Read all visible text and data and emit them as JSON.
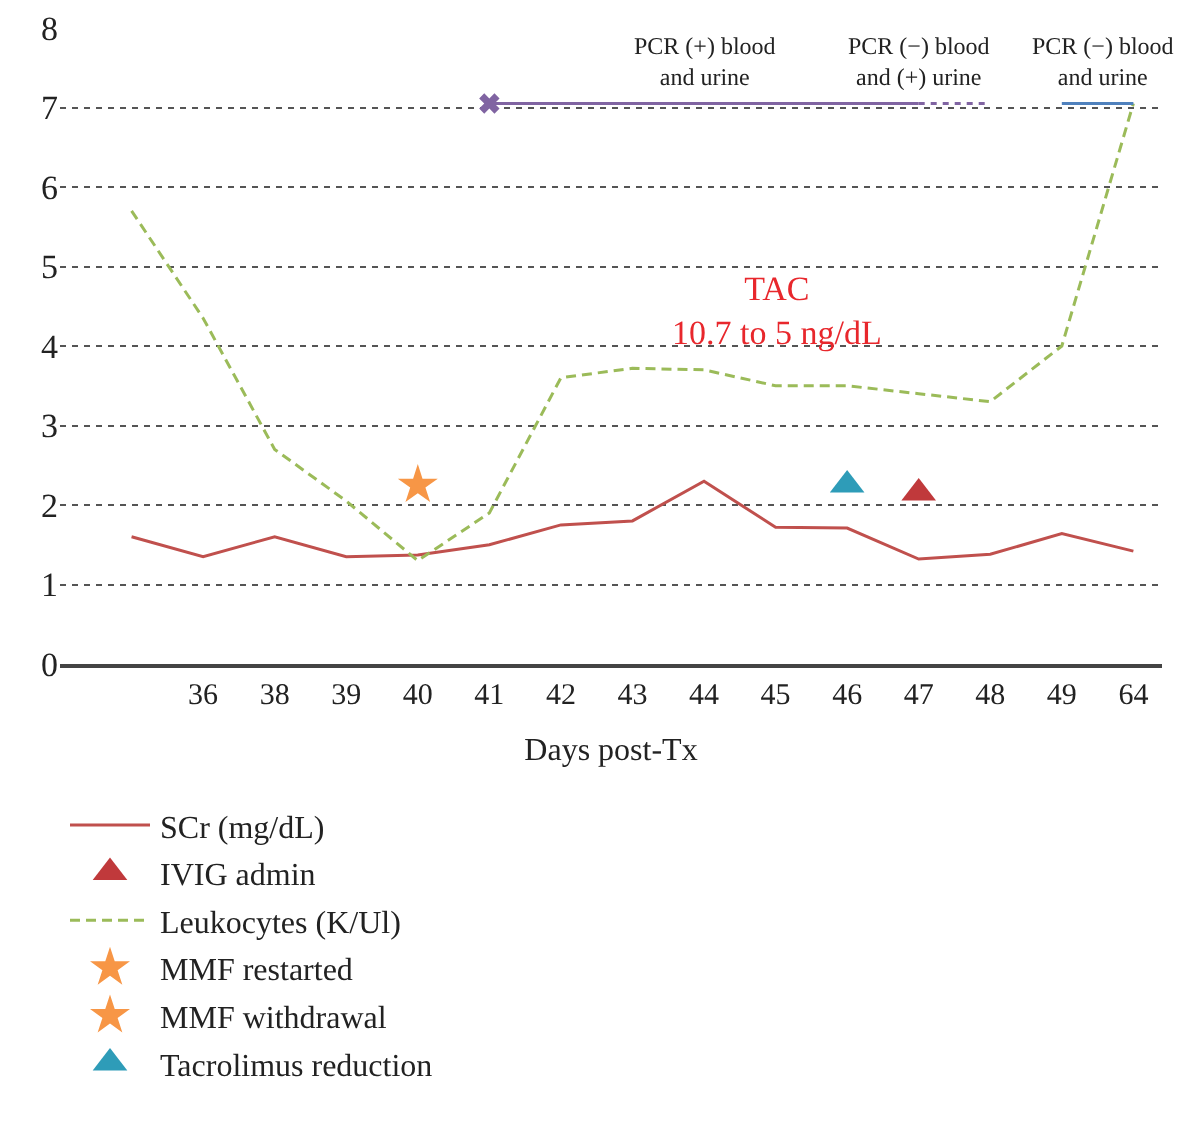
{
  "chart_data": {
    "type": "line",
    "xlabel": "Days post-Tx",
    "categories": [
      null,
      "36",
      "38",
      "39",
      "40",
      "41",
      "42",
      "43",
      "44",
      "45",
      "46",
      "47",
      "48",
      "49",
      "64"
    ],
    "ylim": [
      0,
      8
    ],
    "yticks": [
      0,
      1,
      2,
      3,
      4,
      5,
      6,
      7,
      8
    ],
    "grid": "y",
    "legend": "bottom",
    "marker": "none",
    "series": [
      {
        "name": "SCr (mg/dL)",
        "color": "#c0504d",
        "line_style": "solid",
        "values": [
          1.6,
          1.35,
          1.6,
          1.35,
          1.37,
          1.5,
          1.75,
          1.8,
          2.3,
          1.72,
          1.71,
          1.32,
          1.38,
          1.64,
          1.42
        ]
      },
      {
        "name": "IVIG admin",
        "type": "scatter",
        "marker": "triangle",
        "color": "#c0393b",
        "x": [
          "47"
        ],
        "values": [
          2.15
        ]
      },
      {
        "name": "Leukocytes (K/Ul)",
        "color": "#9bbb59",
        "line_style": "dashed",
        "values": [
          5.7,
          4.35,
          2.7,
          2.05,
          1.3,
          1.9,
          3.6,
          3.72,
          3.7,
          3.5,
          3.5,
          3.4,
          3.3,
          4.0,
          7.05
        ]
      },
      {
        "name": "MMF restarted",
        "type": "scatter",
        "marker": "star",
        "color": "#f79646",
        "values": [
          null,
          null,
          null,
          null,
          null,
          null,
          null,
          null,
          null,
          null,
          null,
          null,
          null,
          null,
          null
        ]
      },
      {
        "name": "MMF withdrawal",
        "type": "scatter",
        "marker": "star",
        "color": "#f79646",
        "x": [
          "40"
        ],
        "values": [
          2.25
        ]
      },
      {
        "name": "Tacrolimus reduction",
        "type": "scatter",
        "marker": "triangle",
        "color": "#2e9cb8",
        "x": [
          "46"
        ],
        "values": [
          2.25
        ]
      },
      {
        "type": "scatter",
        "marker": "cross",
        "color": "#8064a2",
        "x": [
          "41"
        ],
        "values": [
          7.05
        ]
      },
      {
        "color": "#8064a2",
        "line_style": "solid",
        "x": [
          "41",
          "47"
        ],
        "values": [
          7.05,
          7.05
        ]
      },
      {
        "color": "#8064a2",
        "line_style": "dotted",
        "x": [
          "47",
          "48"
        ],
        "values": [
          7.05,
          7.05
        ]
      },
      {
        "color": "#4f81bd",
        "line_style": "solid",
        "x": [
          "49",
          "64"
        ],
        "values": [
          7.05,
          7.05
        ]
      }
    ],
    "annotations": [
      {
        "text": "PCR (+) blood\nand urine",
        "x": "44",
        "y": 7.05
      },
      {
        "text": "PCR (−) blood\nand (+) urine",
        "x": "47",
        "y": 7.05
      },
      {
        "text": "PCR (−) blood\nand urine",
        "x": "64",
        "y": 7.05
      },
      "TAC\n10.7 to 5 ng/dL"
    ]
  }
}
